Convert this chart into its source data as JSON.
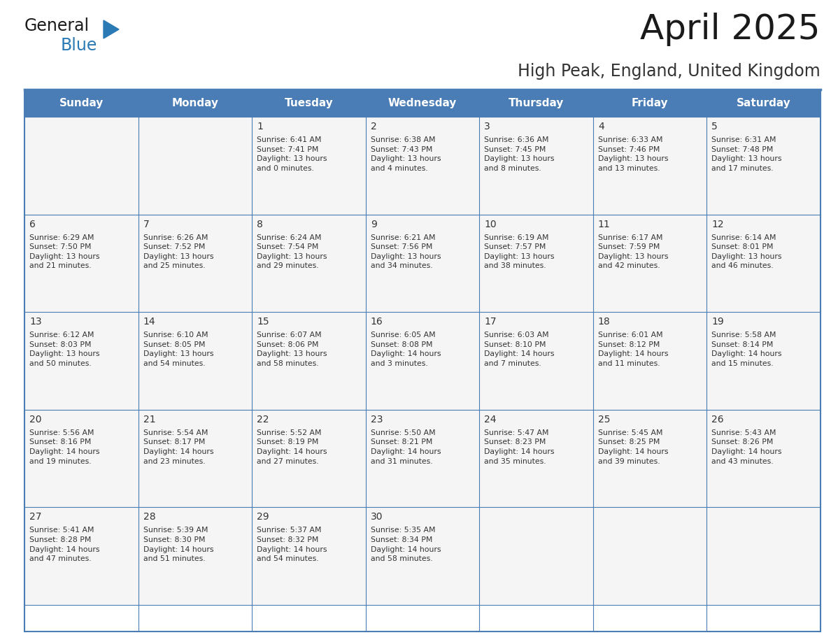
{
  "title": "April 2025",
  "subtitle": "High Peak, England, United Kingdom",
  "header_bg": "#4a7cb5",
  "header_text_color": "#FFFFFF",
  "cell_bg": "#f5f5f5",
  "border_color": "#4a7cb5",
  "grid_color": "#c0c8d8",
  "text_color": "#333333",
  "days_of_week": [
    "Sunday",
    "Monday",
    "Tuesday",
    "Wednesday",
    "Thursday",
    "Friday",
    "Saturday"
  ],
  "calendar": [
    [
      {
        "day": "",
        "info": ""
      },
      {
        "day": "",
        "info": ""
      },
      {
        "day": "1",
        "info": "Sunrise: 6:41 AM\nSunset: 7:41 PM\nDaylight: 13 hours\nand 0 minutes."
      },
      {
        "day": "2",
        "info": "Sunrise: 6:38 AM\nSunset: 7:43 PM\nDaylight: 13 hours\nand 4 minutes."
      },
      {
        "day": "3",
        "info": "Sunrise: 6:36 AM\nSunset: 7:45 PM\nDaylight: 13 hours\nand 8 minutes."
      },
      {
        "day": "4",
        "info": "Sunrise: 6:33 AM\nSunset: 7:46 PM\nDaylight: 13 hours\nand 13 minutes."
      },
      {
        "day": "5",
        "info": "Sunrise: 6:31 AM\nSunset: 7:48 PM\nDaylight: 13 hours\nand 17 minutes."
      }
    ],
    [
      {
        "day": "6",
        "info": "Sunrise: 6:29 AM\nSunset: 7:50 PM\nDaylight: 13 hours\nand 21 minutes."
      },
      {
        "day": "7",
        "info": "Sunrise: 6:26 AM\nSunset: 7:52 PM\nDaylight: 13 hours\nand 25 minutes."
      },
      {
        "day": "8",
        "info": "Sunrise: 6:24 AM\nSunset: 7:54 PM\nDaylight: 13 hours\nand 29 minutes."
      },
      {
        "day": "9",
        "info": "Sunrise: 6:21 AM\nSunset: 7:56 PM\nDaylight: 13 hours\nand 34 minutes."
      },
      {
        "day": "10",
        "info": "Sunrise: 6:19 AM\nSunset: 7:57 PM\nDaylight: 13 hours\nand 38 minutes."
      },
      {
        "day": "11",
        "info": "Sunrise: 6:17 AM\nSunset: 7:59 PM\nDaylight: 13 hours\nand 42 minutes."
      },
      {
        "day": "12",
        "info": "Sunrise: 6:14 AM\nSunset: 8:01 PM\nDaylight: 13 hours\nand 46 minutes."
      }
    ],
    [
      {
        "day": "13",
        "info": "Sunrise: 6:12 AM\nSunset: 8:03 PM\nDaylight: 13 hours\nand 50 minutes."
      },
      {
        "day": "14",
        "info": "Sunrise: 6:10 AM\nSunset: 8:05 PM\nDaylight: 13 hours\nand 54 minutes."
      },
      {
        "day": "15",
        "info": "Sunrise: 6:07 AM\nSunset: 8:06 PM\nDaylight: 13 hours\nand 58 minutes."
      },
      {
        "day": "16",
        "info": "Sunrise: 6:05 AM\nSunset: 8:08 PM\nDaylight: 14 hours\nand 3 minutes."
      },
      {
        "day": "17",
        "info": "Sunrise: 6:03 AM\nSunset: 8:10 PM\nDaylight: 14 hours\nand 7 minutes."
      },
      {
        "day": "18",
        "info": "Sunrise: 6:01 AM\nSunset: 8:12 PM\nDaylight: 14 hours\nand 11 minutes."
      },
      {
        "day": "19",
        "info": "Sunrise: 5:58 AM\nSunset: 8:14 PM\nDaylight: 14 hours\nand 15 minutes."
      }
    ],
    [
      {
        "day": "20",
        "info": "Sunrise: 5:56 AM\nSunset: 8:16 PM\nDaylight: 14 hours\nand 19 minutes."
      },
      {
        "day": "21",
        "info": "Sunrise: 5:54 AM\nSunset: 8:17 PM\nDaylight: 14 hours\nand 23 minutes."
      },
      {
        "day": "22",
        "info": "Sunrise: 5:52 AM\nSunset: 8:19 PM\nDaylight: 14 hours\nand 27 minutes."
      },
      {
        "day": "23",
        "info": "Sunrise: 5:50 AM\nSunset: 8:21 PM\nDaylight: 14 hours\nand 31 minutes."
      },
      {
        "day": "24",
        "info": "Sunrise: 5:47 AM\nSunset: 8:23 PM\nDaylight: 14 hours\nand 35 minutes."
      },
      {
        "day": "25",
        "info": "Sunrise: 5:45 AM\nSunset: 8:25 PM\nDaylight: 14 hours\nand 39 minutes."
      },
      {
        "day": "26",
        "info": "Sunrise: 5:43 AM\nSunset: 8:26 PM\nDaylight: 14 hours\nand 43 minutes."
      }
    ],
    [
      {
        "day": "27",
        "info": "Sunrise: 5:41 AM\nSunset: 8:28 PM\nDaylight: 14 hours\nand 47 minutes."
      },
      {
        "day": "28",
        "info": "Sunrise: 5:39 AM\nSunset: 8:30 PM\nDaylight: 14 hours\nand 51 minutes."
      },
      {
        "day": "29",
        "info": "Sunrise: 5:37 AM\nSunset: 8:32 PM\nDaylight: 14 hours\nand 54 minutes."
      },
      {
        "day": "30",
        "info": "Sunrise: 5:35 AM\nSunset: 8:34 PM\nDaylight: 14 hours\nand 58 minutes."
      },
      {
        "day": "",
        "info": ""
      },
      {
        "day": "",
        "info": ""
      },
      {
        "day": "",
        "info": ""
      }
    ]
  ],
  "logo_color_general": "#1a1a1a",
  "logo_color_blue": "#2a7ab5",
  "logo_triangle_color": "#2a7ab5",
  "title_color": "#1a1a1a",
  "subtitle_color": "#333333"
}
